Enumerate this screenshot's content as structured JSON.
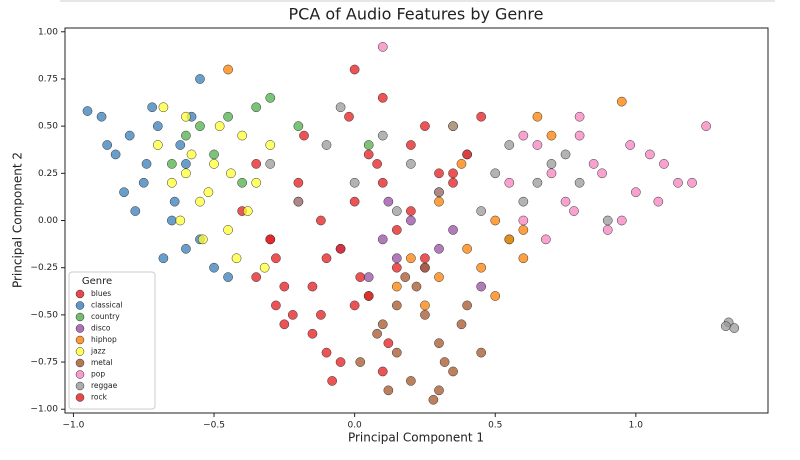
{
  "chart_data": {
    "type": "scatter",
    "title": "PCA of Audio Features by Genre",
    "x_label": "Principal Component 1",
    "y_label": "Principal Component 2",
    "legend_title": "Genre",
    "legend_position": "lower left",
    "xlim": [
      -1.03,
      1.47
    ],
    "ylim": [
      -1.02,
      1.02
    ],
    "xticks": [
      {
        "value": -1.0,
        "label": "−1.0"
      },
      {
        "value": -0.5,
        "label": "−0.5"
      },
      {
        "value": 0,
        "label": "0.0"
      },
      {
        "value": 0.5,
        "label": "0.5"
      },
      {
        "value": 1.0,
        "label": "1.0"
      }
    ],
    "yticks": [
      {
        "value": -1.0,
        "label": "−1.00"
      },
      {
        "value": -0.75,
        "label": "−0.75"
      },
      {
        "value": -0.5,
        "label": "−0.50"
      },
      {
        "value": -0.25,
        "label": "−0.25"
      },
      {
        "value": 0,
        "label": "0.00"
      },
      {
        "value": 0.25,
        "label": "0.25"
      },
      {
        "value": 0.5,
        "label": "0.50"
      },
      {
        "value": 0.75,
        "label": "0.75"
      },
      {
        "value": 1.0,
        "label": "1.00"
      }
    ],
    "grid": false,
    "series": [
      {
        "name": "blues",
        "color": "#e41a1c",
        "x": [
          -0.35,
          -0.2,
          -0.1,
          0.0,
          0.1,
          -0.25,
          -0.15,
          -0.05,
          0.05,
          0.2,
          -0.3,
          -0.12,
          -0.22,
          0.15,
          0.3,
          -0.08,
          0.02,
          -0.18,
          0.25,
          -0.28,
          0.12,
          -0.02,
          -0.4,
          0.35
        ],
        "y": [
          0.3,
          0.1,
          -0.2,
          -0.45,
          0.2,
          -0.35,
          -0.6,
          -0.75,
          0.35,
          0.05,
          -0.1,
          0.0,
          -0.5,
          -0.25,
          0.15,
          -0.85,
          -0.3,
          0.45,
          0.5,
          -0.2,
          -0.65,
          0.55,
          0.05,
          0.25
        ]
      },
      {
        "name": "classical",
        "color": "#377eb8",
        "x": [
          -0.9,
          -0.85,
          -0.8,
          -0.75,
          -0.7,
          -0.65,
          -0.6,
          -0.55,
          -0.82,
          -0.72,
          -0.62,
          -0.88,
          -0.78,
          -0.68,
          -0.58,
          -0.5,
          -0.74,
          -0.64,
          -0.45,
          -0.95,
          -0.55,
          -0.6
        ],
        "y": [
          0.55,
          0.35,
          0.45,
          0.2,
          0.5,
          0.0,
          0.3,
          -0.1,
          0.15,
          0.6,
          0.4,
          0.4,
          0.05,
          -0.2,
          0.55,
          -0.25,
          0.3,
          0.1,
          -0.3,
          0.58,
          0.75,
          -0.15
        ]
      },
      {
        "name": "country",
        "color": "#4daf4a",
        "x": [
          -0.6,
          -0.55,
          -0.5,
          -0.35,
          -0.45,
          -0.3,
          -0.2,
          0.05,
          -0.65,
          0.55,
          -0.4
        ],
        "y": [
          0.45,
          0.5,
          0.35,
          0.6,
          0.55,
          0.65,
          0.5,
          0.4,
          0.3,
          -0.1,
          0.2
        ]
      },
      {
        "name": "disco",
        "color": "#984ea3",
        "x": [
          0.1,
          0.15,
          0.2,
          0.05,
          0.3,
          0.25,
          0.45,
          0.12,
          -0.05,
          0.35
        ],
        "y": [
          -0.1,
          -0.2,
          0.0,
          -0.3,
          -0.15,
          -0.25,
          -0.35,
          0.1,
          -0.15,
          -0.05
        ]
      },
      {
        "name": "hiphop",
        "color": "#ff7f00",
        "x": [
          0.2,
          0.3,
          0.4,
          0.5,
          0.6,
          0.25,
          0.35,
          0.45,
          0.55,
          0.65,
          0.7,
          0.3,
          0.5,
          0.38,
          0.95,
          0.15,
          0.6,
          -0.45
        ],
        "y": [
          -0.2,
          -0.3,
          -0.15,
          0.0,
          -0.05,
          -0.45,
          0.5,
          -0.25,
          -0.1,
          0.55,
          0.45,
          0.1,
          -0.4,
          0.3,
          0.63,
          -0.35,
          -0.2,
          0.8
        ]
      },
      {
        "name": "jazz",
        "color": "#ffff33",
        "x": [
          -0.7,
          -0.65,
          -0.6,
          -0.55,
          -0.5,
          -0.45,
          -0.4,
          -0.35,
          -0.62,
          -0.52,
          -0.42,
          -0.58,
          -0.48,
          -0.38,
          -0.32,
          -0.68,
          -0.44,
          -0.54,
          -0.3,
          -0.6
        ],
        "y": [
          0.4,
          0.2,
          0.55,
          0.1,
          0.3,
          -0.05,
          0.45,
          0.2,
          0.0,
          0.15,
          -0.2,
          0.35,
          0.5,
          0.05,
          -0.25,
          0.6,
          0.25,
          -0.1,
          0.4,
          0.25
        ]
      },
      {
        "name": "metal",
        "color": "#a65628",
        "x": [
          0.05,
          0.1,
          0.15,
          0.2,
          0.25,
          0.3,
          0.35,
          0.4,
          0.12,
          0.22,
          0.32,
          0.08,
          0.18,
          0.28,
          0.38,
          0.02,
          0.45,
          0.15,
          0.25,
          0.3
        ],
        "y": [
          -0.4,
          -0.55,
          -0.7,
          -0.85,
          -0.5,
          -0.65,
          -0.8,
          -0.45,
          -0.9,
          -0.35,
          -0.75,
          -0.6,
          -0.3,
          -0.95,
          -0.55,
          -0.75,
          -0.7,
          -0.45,
          -0.25,
          -0.9
        ]
      },
      {
        "name": "pop",
        "color": "#f781bf",
        "x": [
          0.55,
          0.65,
          0.75,
          0.85,
          0.95,
          1.05,
          1.15,
          0.6,
          0.7,
          0.8,
          0.9,
          1.0,
          1.1,
          1.2,
          0.68,
          0.78,
          0.88,
          0.98,
          1.08,
          1.25,
          0.8,
          0.6,
          0.1
        ],
        "y": [
          0.2,
          0.4,
          0.1,
          0.3,
          0.0,
          0.35,
          0.2,
          0.0,
          0.25,
          0.45,
          -0.05,
          0.15,
          0.3,
          0.2,
          -0.1,
          0.05,
          0.25,
          0.4,
          0.1,
          0.5,
          0.55,
          0.45,
          0.92
        ]
      },
      {
        "name": "reggae",
        "color": "#999999",
        "x": [
          -0.3,
          -0.2,
          -0.1,
          0.0,
          0.1,
          0.2,
          0.3,
          0.4,
          0.5,
          0.6,
          0.7,
          0.8,
          0.9,
          0.15,
          0.35,
          0.55,
          0.75,
          -0.05,
          0.45,
          0.65,
          1.33,
          1.35,
          1.32
        ],
        "y": [
          0.3,
          0.1,
          0.4,
          0.2,
          0.45,
          0.3,
          0.15,
          0.35,
          0.25,
          0.1,
          0.3,
          0.2,
          0.0,
          0.05,
          0.5,
          0.4,
          0.35,
          0.6,
          0.05,
          0.2,
          -0.54,
          -0.57,
          -0.56
        ]
      },
      {
        "name": "rock",
        "color": "#e41a1c",
        "x": [
          -0.3,
          -0.15,
          0.0,
          0.15,
          0.3,
          -0.25,
          -0.1,
          0.05,
          0.2,
          0.35,
          -0.2,
          -0.05,
          0.1,
          -0.35,
          0.25,
          -0.12,
          0.08,
          0.4,
          -0.28,
          0.0,
          0.1,
          0.45
        ],
        "y": [
          -0.1,
          -0.35,
          0.1,
          -0.05,
          0.25,
          -0.55,
          -0.7,
          -0.4,
          0.4,
          0.2,
          0.2,
          -0.15,
          -0.8,
          -0.3,
          -0.2,
          -0.5,
          0.3,
          0.35,
          -0.45,
          0.8,
          0.65,
          0.55
        ]
      }
    ]
  }
}
